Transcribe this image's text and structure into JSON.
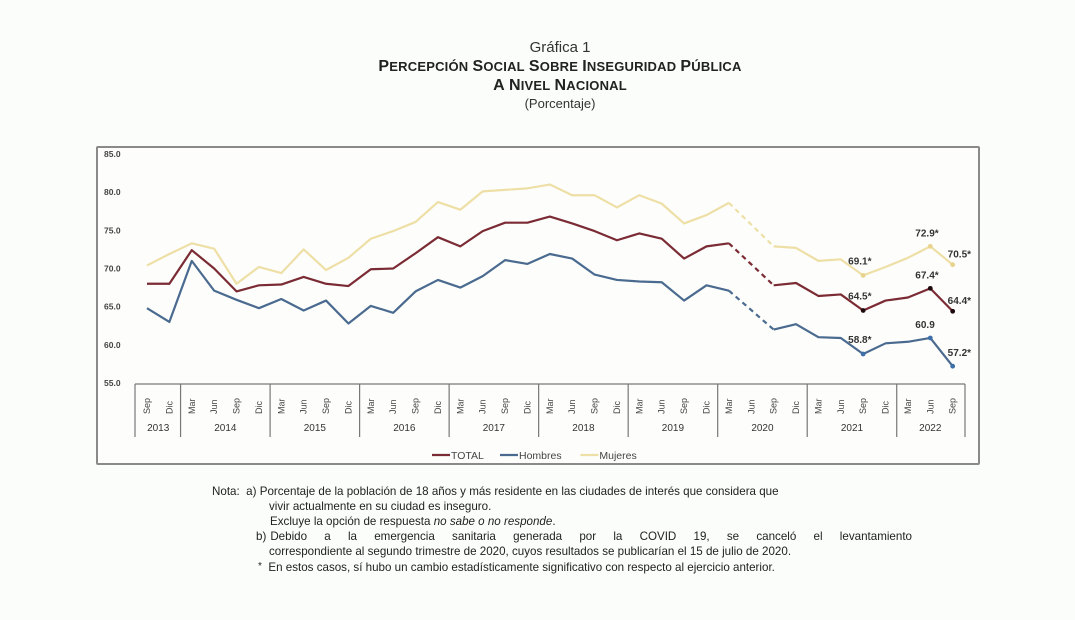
{
  "header": {
    "figure_number": "Gráfica 1",
    "title_line1": "Percepción social sobre inseguridad pública",
    "title_line2": "a nivel nacional",
    "subtitle": "(Porcentaje)"
  },
  "legend": {
    "items": [
      {
        "label": "TOTAL",
        "color": "#7b2b34"
      },
      {
        "label": "Hombres",
        "color": "#4a6a8f"
      },
      {
        "label": "Mujeres",
        "color": "#eedfa6"
      }
    ]
  },
  "notes": {
    "prefix": "Nota:",
    "a_label": "a)",
    "a_line1": "Porcentaje de la población de 18 años y más residente en las ciudades de interés que considera que",
    "a_line2": "vivir actualmente en su ciudad es inseguro.",
    "a_line3_pre": "Excluye la opción de respuesta ",
    "a_line3_em": "no sabe o no responde",
    "a_line3_post": ".",
    "b_label": "b)",
    "b_line1": "Debido a la emergencia sanitaria generada por la COVID 19, se canceló el levantamiento",
    "b_line2": "correspondiente al segundo trimestre de 2020, cuyos resultados se publicarían el 15 de julio de 2020.",
    "star_label": "*",
    "star_line": "En estos casos, sí hubo un cambio estadísticamente significativo con respecto al ejercicio anterior."
  },
  "chart_data": {
    "type": "line",
    "title": "Percepción social sobre inseguridad pública a nivel nacional",
    "subtitle": "(Porcentaje)",
    "xlabel": "",
    "ylabel": "Porcentaje",
    "ylim": [
      55,
      85
    ],
    "yticks": [
      "85.0",
      "80.0",
      "75.0",
      "70.0",
      "65.0",
      "60.0",
      "55.0"
    ],
    "grid": false,
    "legend_position": "bottom",
    "x": [
      "Sep 2013",
      "Dic 2013",
      "Mar 2014",
      "Jun 2014",
      "Sep 2014",
      "Dic 2014",
      "Mar 2015",
      "Jun 2015",
      "Sep 2015",
      "Dic 2015",
      "Mar 2016",
      "Jun 2016",
      "Sep 2016",
      "Dic 2016",
      "Mar 2017",
      "Jun 2017",
      "Sep 2017",
      "Dic 2017",
      "Mar 2018",
      "Jun 2018",
      "Sep 2018",
      "Dic 2018",
      "Mar 2019",
      "Jun 2019",
      "Sep 2019",
      "Dic 2019",
      "Mar 2020",
      "Jun 2020",
      "Sep 2020",
      "Dic 2020",
      "Mar 2021",
      "Jun 2021",
      "Sep 2021",
      "Dic 2021",
      "Mar 2022",
      "Jun 2022",
      "Sep 2022"
    ],
    "x_months": [
      "Sep",
      "Dic",
      "Mar",
      "Jun",
      "Sep",
      "Dic",
      "Mar",
      "Jun",
      "Sep",
      "Dic",
      "Mar",
      "Jun",
      "Sep",
      "Dic",
      "Mar",
      "Jun",
      "Sep",
      "Dic",
      "Mar",
      "Jun",
      "Sep",
      "Dic",
      "Mar",
      "Jun",
      "Sep",
      "Dic",
      "Mar",
      "Jun",
      "Sep",
      "Dic",
      "Mar",
      "Jun",
      "Sep",
      "Dic",
      "Mar",
      "Jun",
      "Sep"
    ],
    "x_years": [
      {
        "label": "2013",
        "start": 0,
        "count": 2
      },
      {
        "label": "2014",
        "start": 2,
        "count": 4
      },
      {
        "label": "2015",
        "start": 6,
        "count": 4
      },
      {
        "label": "2016",
        "start": 10,
        "count": 4
      },
      {
        "label": "2017",
        "start": 14,
        "count": 4
      },
      {
        "label": "2018",
        "start": 18,
        "count": 4
      },
      {
        "label": "2019",
        "start": 22,
        "count": 4
      },
      {
        "label": "2020",
        "start": 26,
        "count": 4
      },
      {
        "label": "2021",
        "start": 30,
        "count": 4
      },
      {
        "label": "2022",
        "start": 34,
        "count": 3
      }
    ],
    "series": [
      {
        "name": "TOTAL",
        "color": "#7b2b34",
        "values": [
          68.0,
          68.0,
          72.4,
          70.0,
          67.0,
          67.8,
          67.9,
          68.9,
          68.0,
          67.7,
          69.9,
          70.0,
          72.0,
          74.1,
          72.9,
          74.9,
          76.0,
          76.0,
          76.8,
          75.9,
          74.9,
          73.7,
          74.6,
          73.9,
          71.3,
          72.9,
          73.3,
          null,
          67.8,
          68.1,
          66.4,
          66.6,
          64.5,
          65.8,
          66.2,
          67.4,
          64.4
        ]
      },
      {
        "name": "Hombres",
        "color": "#4a6a8f",
        "values": [
          64.8,
          63.0,
          71.0,
          67.1,
          65.9,
          64.8,
          66.0,
          64.5,
          65.8,
          62.8,
          65.1,
          64.2,
          67.0,
          68.5,
          67.5,
          69.0,
          71.1,
          70.6,
          71.9,
          71.3,
          69.2,
          68.5,
          68.3,
          68.2,
          65.8,
          67.8,
          67.1,
          null,
          62.0,
          62.7,
          61.0,
          60.9,
          58.8,
          60.2,
          60.4,
          60.9,
          57.2
        ]
      },
      {
        "name": "Mujeres",
        "color": "#eedfa6",
        "values": [
          70.4,
          71.9,
          73.3,
          72.6,
          68.0,
          70.2,
          69.4,
          72.5,
          69.8,
          71.4,
          73.9,
          74.9,
          76.1,
          78.7,
          77.7,
          80.1,
          80.3,
          80.5,
          81.0,
          79.6,
          79.6,
          78.0,
          79.6,
          78.5,
          75.9,
          77.0,
          78.6,
          null,
          72.9,
          72.7,
          71.0,
          71.2,
          69.1,
          70.2,
          71.4,
          72.9,
          70.5
        ]
      }
    ],
    "gap_note": "Jun 2020 survey cancelled (COVID 19); segment Mar 2020–Sep 2020 drawn dashed",
    "annotations": [
      {
        "series": "Mujeres",
        "x": "Sep 2021",
        "label": "69.1*"
      },
      {
        "series": "Mujeres",
        "x": "Jun 2022",
        "label": "72.9*"
      },
      {
        "series": "Mujeres",
        "x": "Sep 2022",
        "label": "70.5*"
      },
      {
        "series": "TOTAL",
        "x": "Sep 2021",
        "label": "64.5*"
      },
      {
        "series": "TOTAL",
        "x": "Jun 2022",
        "label": "67.4*"
      },
      {
        "series": "TOTAL",
        "x": "Sep 2022",
        "label": "64.4*"
      },
      {
        "series": "Hombres",
        "x": "Sep 2021",
        "label": "58.8*"
      },
      {
        "series": "Hombres",
        "x": "Jun 2022",
        "label": "60.9"
      },
      {
        "series": "Hombres",
        "x": "Sep 2022",
        "label": "57.2*"
      }
    ]
  }
}
